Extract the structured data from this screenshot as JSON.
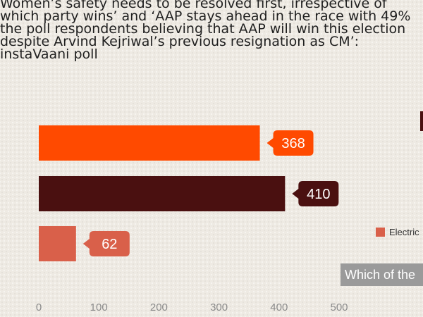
{
  "headline": {
    "lines": [
      "Women’s safety needs to be resolved first, irrespective of",
      "which party wins’ and ‘AAP stays ahead in the race with 49%",
      "the poll respondents believing that AAP will win this election",
      "despite Arvind Kejriwal’s previous resignation as CM’:",
      "instaVaani poll"
    ]
  },
  "legend": {
    "label": "Electric"
  },
  "question": {
    "text": "Which of the"
  },
  "chart_data": {
    "type": "bar",
    "orientation": "horizontal",
    "categories": [
      "",
      "",
      ""
    ],
    "values": [
      368,
      410,
      62
    ],
    "colors": [
      "#ff4a00",
      "#4a1010",
      "#d9604a"
    ],
    "xlim": [
      0,
      500
    ],
    "xticks": [
      0,
      100,
      200,
      300,
      400,
      500
    ],
    "grid": false,
    "title": "",
    "xlabel": "",
    "ylabel": ""
  }
}
